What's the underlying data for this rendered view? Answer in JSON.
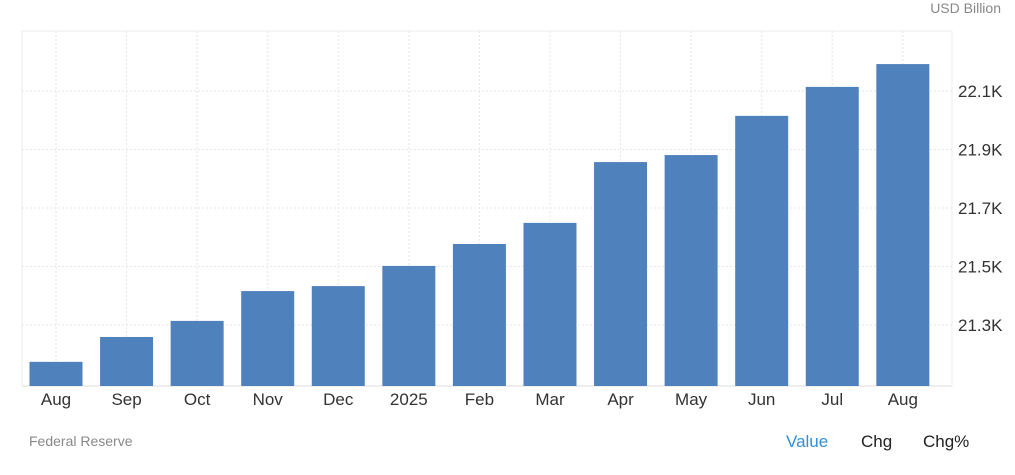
{
  "unit_label": "USD Billion",
  "source": "Federal Reserve",
  "tabs": [
    {
      "label": "Value",
      "active": true
    },
    {
      "label": "Chg",
      "active": false
    },
    {
      "label": "Chg%",
      "active": false
    }
  ],
  "colors": {
    "bar": "#4f81bd",
    "active_tab": "#2f8fd8"
  },
  "chart_data": {
    "type": "bar",
    "categories": [
      "Aug",
      "Sep",
      "Oct",
      "Nov",
      "Dec",
      "2025",
      "Feb",
      "Mar",
      "Apr",
      "May",
      "Jun",
      "Jul",
      "Aug"
    ],
    "values": [
      21174,
      21259,
      21314,
      21416,
      21433,
      21502,
      21577,
      21649,
      21857,
      21881,
      22015,
      22114,
      22192
    ],
    "ylim": [
      21095,
      22300
    ],
    "yticks": [
      21300,
      21500,
      21700,
      21900,
      22100
    ],
    "ytick_labels": [
      "21.3K",
      "21.5K",
      "21.7K",
      "21.9K",
      "22.1K"
    ],
    "yaxis_position": "right",
    "grid": true,
    "ylabel": "USD Billion"
  }
}
